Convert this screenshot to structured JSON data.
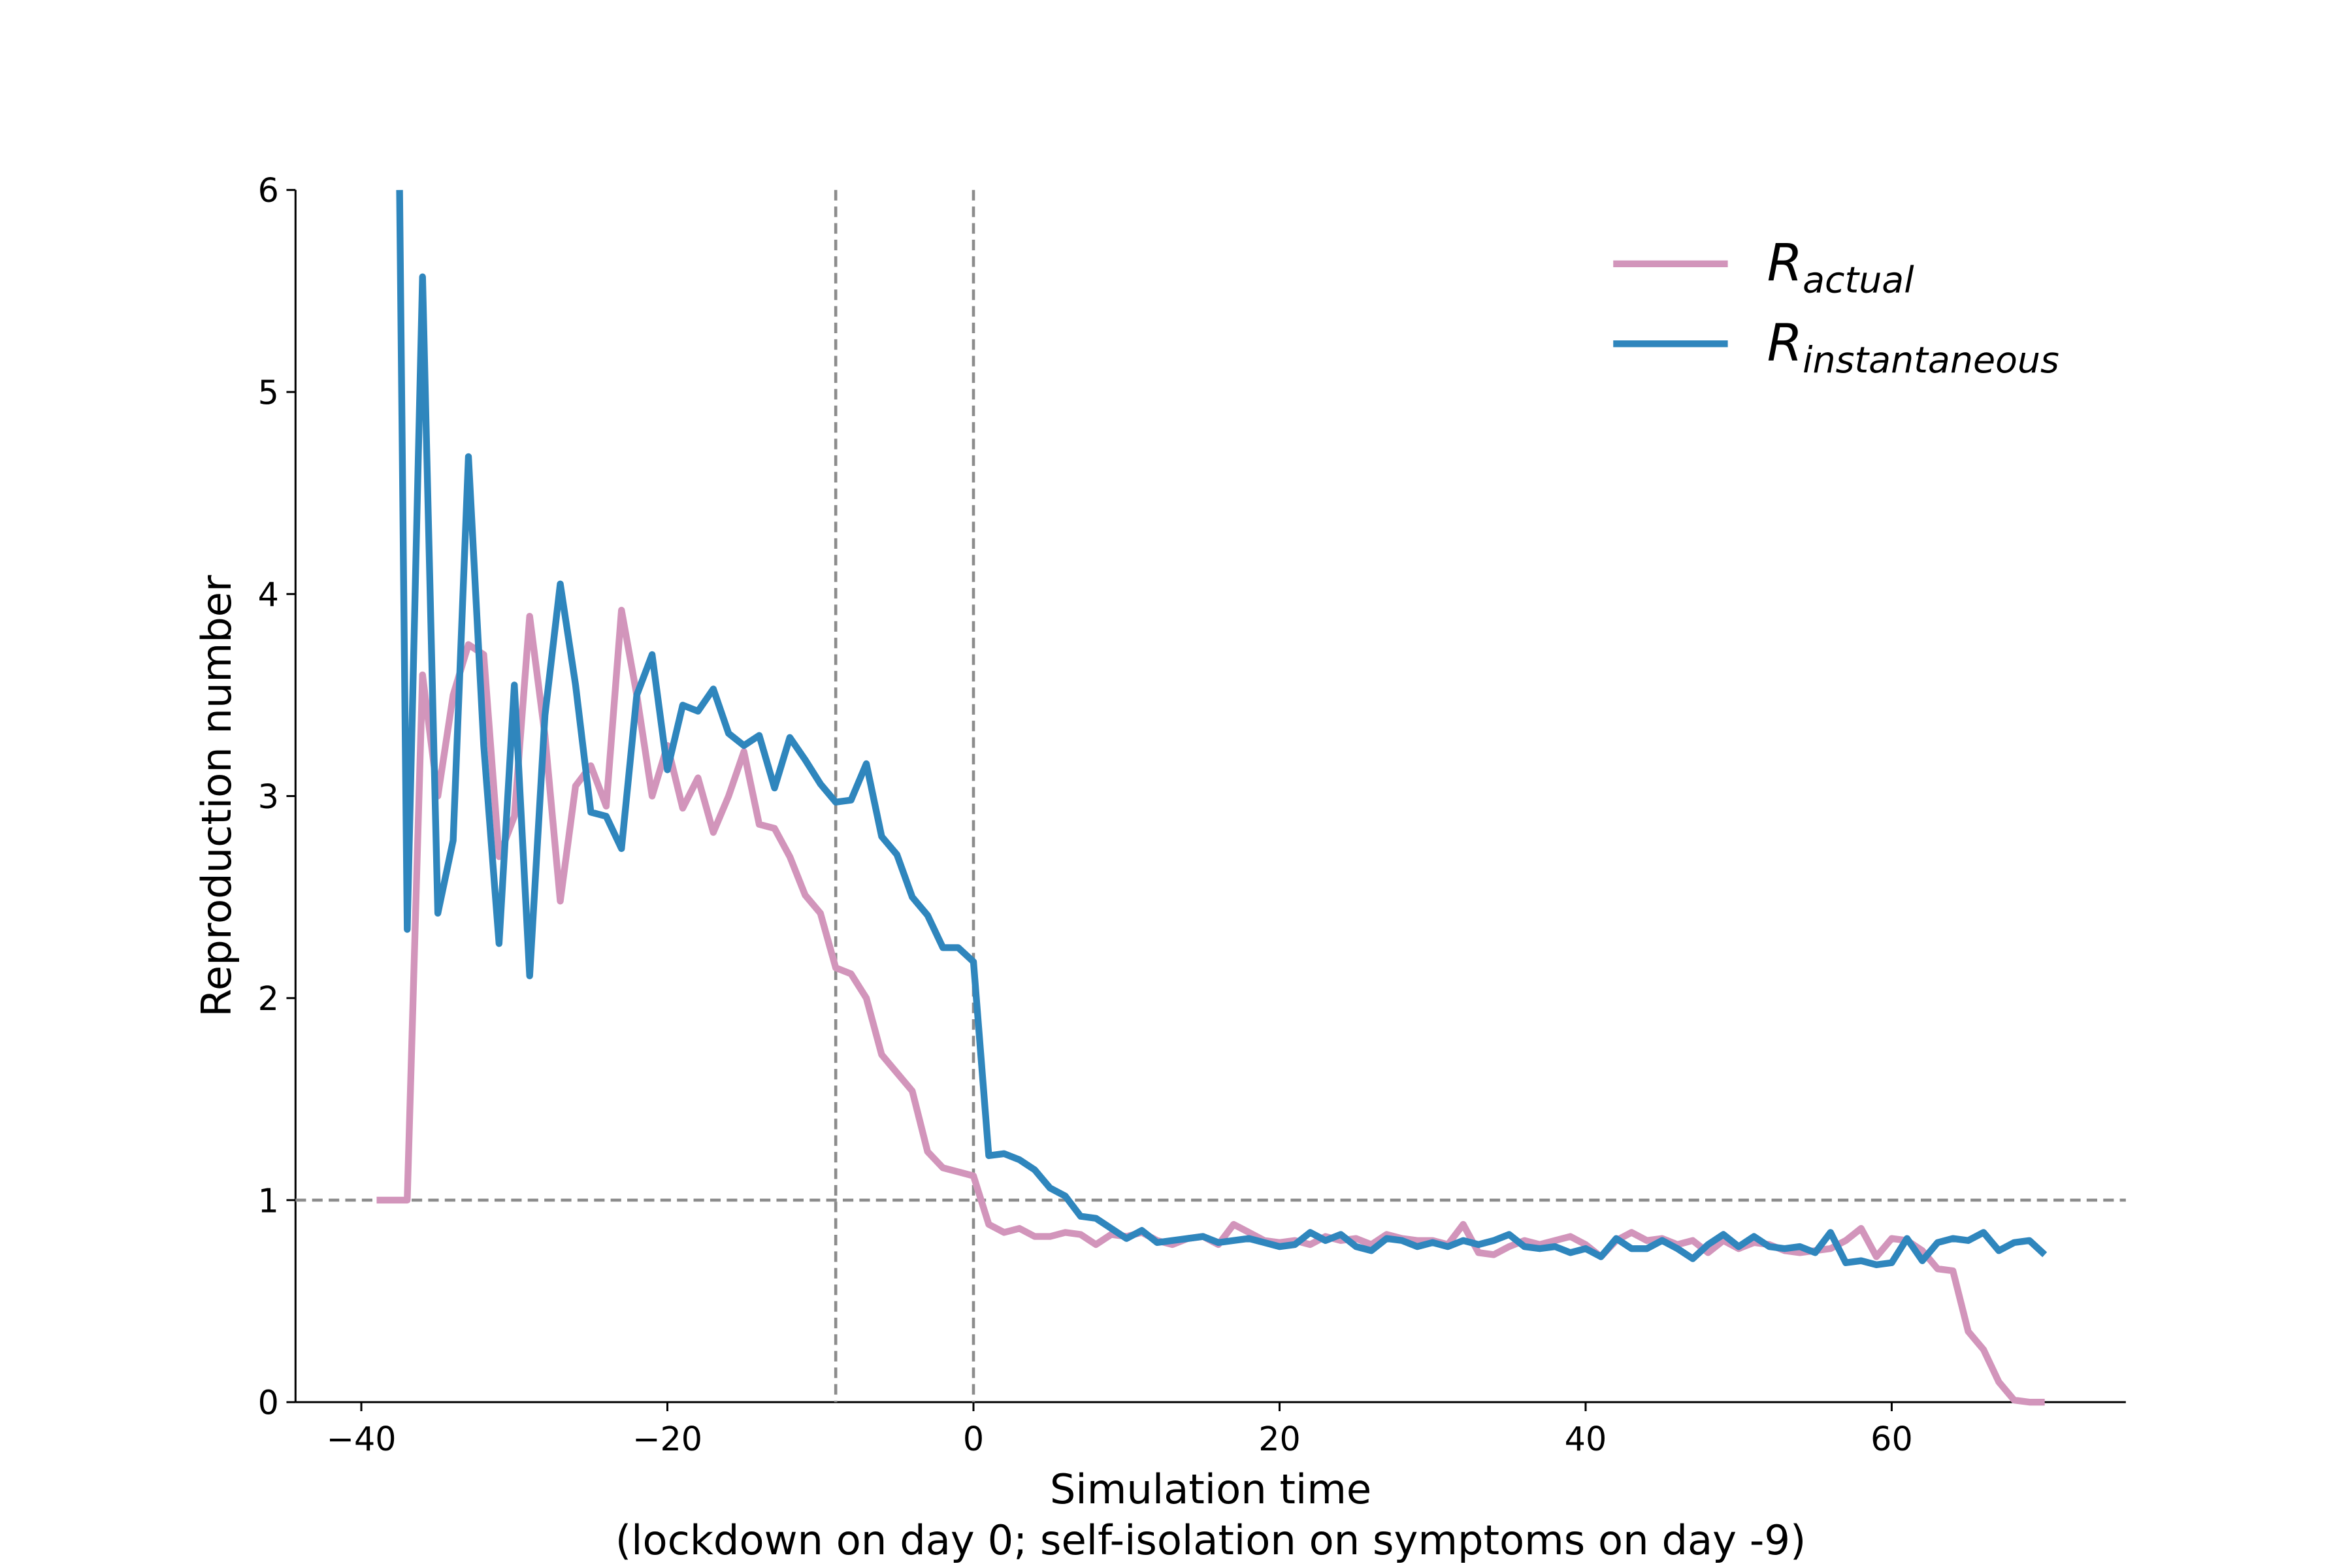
{
  "chart_data": {
    "type": "line",
    "xlabel": "Simulation time",
    "xlabel_note": "(lockdown on day 0; self-isolation on symptoms on day -9)",
    "ylabel": "Reproduction number",
    "xlim": [
      -44.3,
      75.3
    ],
    "ylim": [
      0,
      6
    ],
    "xticks": [
      {
        "value": -40,
        "label": "−40"
      },
      {
        "value": -20,
        "label": "−20"
      },
      0,
      20,
      40,
      60
    ],
    "yticks": [
      0,
      1,
      2,
      3,
      4,
      5,
      6
    ],
    "reference_lines": {
      "h": [
        1
      ],
      "v": [
        -9,
        0
      ],
      "color": "#8c8c8c"
    },
    "legend": "upper right",
    "series": [
      {
        "name": [
          "R",
          "actual"
        ],
        "color": "#d295bb",
        "x": [
          -39,
          -38,
          -37,
          -36,
          -35,
          -34,
          -33,
          -32,
          -31,
          -30,
          -29,
          -28,
          -27,
          -26,
          -25,
          -24,
          -23,
          -22,
          -21,
          -20,
          -19,
          -18,
          -17,
          -16,
          -15,
          -14,
          -13,
          -12,
          -11,
          -10,
          -9,
          -8,
          -7,
          -6,
          -5,
          -4,
          -3,
          -2,
          -1,
          0,
          1,
          2,
          3,
          4,
          5,
          6,
          7,
          8,
          9,
          10,
          11,
          12,
          13,
          14,
          15,
          16,
          17,
          18,
          19,
          20,
          21,
          22,
          23,
          24,
          25,
          26,
          27,
          28,
          29,
          30,
          31,
          32,
          33,
          34,
          35,
          36,
          37,
          38,
          39,
          40,
          41,
          42,
          43,
          44,
          45,
          46,
          47,
          48,
          49,
          50,
          51,
          52,
          53,
          54,
          55,
          56,
          57,
          58,
          59,
          60,
          61,
          62,
          63,
          64,
          65,
          66,
          67,
          68,
          69,
          70
        ],
        "values": [
          1.0,
          1.0,
          1.0,
          3.6,
          3.0,
          3.5,
          3.75,
          3.7,
          2.7,
          2.9,
          3.89,
          3.3,
          2.48,
          3.05,
          3.15,
          2.95,
          3.92,
          3.5,
          3.0,
          3.25,
          2.94,
          3.09,
          2.82,
          3.0,
          3.22,
          2.86,
          2.84,
          2.7,
          2.51,
          2.42,
          2.15,
          2.12,
          2.0,
          1.72,
          1.63,
          1.54,
          1.24,
          1.16,
          1.14,
          1.12,
          0.88,
          0.84,
          0.86,
          0.82,
          0.82,
          0.84,
          0.83,
          0.78,
          0.83,
          0.82,
          0.84,
          0.8,
          0.78,
          0.81,
          0.82,
          0.78,
          0.88,
          0.84,
          0.8,
          0.79,
          0.8,
          0.78,
          0.82,
          0.8,
          0.81,
          0.78,
          0.83,
          0.81,
          0.8,
          0.8,
          0.78,
          0.88,
          0.74,
          0.73,
          0.77,
          0.8,
          0.78,
          0.8,
          0.82,
          0.78,
          0.72,
          0.8,
          0.84,
          0.8,
          0.81,
          0.78,
          0.8,
          0.74,
          0.8,
          0.76,
          0.79,
          0.78,
          0.75,
          0.74,
          0.75,
          0.76,
          0.8,
          0.86,
          0.72,
          0.81,
          0.8,
          0.75,
          0.66,
          0.65,
          0.35,
          0.26,
          0.1,
          0.01,
          0.0,
          0.0
        ]
      },
      {
        "name": [
          "R",
          "instantaneous"
        ],
        "color": "#2f86bd",
        "x": [
          -37.5,
          -37,
          -36,
          -35,
          -34,
          -33,
          -32,
          -31,
          -30,
          -29,
          -28,
          -27,
          -26,
          -25,
          -24,
          -23,
          -22,
          -21,
          -20,
          -19,
          -18,
          -17,
          -16,
          -15,
          -14,
          -13,
          -12,
          -11,
          -10,
          -9,
          -8,
          -7,
          -6,
          -5,
          -4,
          -3,
          -2,
          -1,
          0,
          1,
          2,
          3,
          4,
          5,
          6,
          7,
          8,
          9,
          10,
          11,
          12,
          13,
          14,
          15,
          16,
          17,
          18,
          19,
          20,
          21,
          22,
          23,
          24,
          25,
          26,
          27,
          28,
          29,
          30,
          31,
          32,
          33,
          34,
          35,
          36,
          37,
          38,
          39,
          40,
          41,
          42,
          43,
          44,
          45,
          46,
          47,
          48,
          49,
          50,
          51,
          52,
          53,
          54,
          55,
          56,
          57,
          58,
          59,
          60,
          61,
          62,
          63,
          64,
          65,
          66,
          67,
          68,
          69,
          70
        ],
        "values": [
          6.0,
          2.34,
          5.57,
          2.42,
          2.78,
          4.68,
          3.25,
          2.27,
          3.55,
          2.11,
          3.4,
          4.05,
          3.55,
          2.92,
          2.9,
          2.74,
          3.5,
          3.7,
          3.13,
          3.45,
          3.42,
          3.53,
          3.31,
          3.25,
          3.3,
          3.04,
          3.29,
          3.18,
          3.06,
          2.97,
          2.98,
          3.16,
          2.8,
          2.71,
          2.5,
          2.41,
          2.25,
          2.25,
          2.18,
          1.22,
          1.23,
          1.2,
          1.15,
          1.06,
          1.02,
          0.92,
          0.91,
          0.86,
          0.81,
          0.85,
          0.79,
          0.8,
          0.81,
          0.82,
          0.79,
          0.8,
          0.81,
          0.79,
          0.77,
          0.78,
          0.84,
          0.8,
          0.83,
          0.77,
          0.75,
          0.81,
          0.8,
          0.77,
          0.79,
          0.77,
          0.8,
          0.78,
          0.8,
          0.83,
          0.77,
          0.76,
          0.77,
          0.74,
          0.76,
          0.72,
          0.81,
          0.76,
          0.76,
          0.8,
          0.76,
          0.71,
          0.78,
          0.83,
          0.77,
          0.82,
          0.77,
          0.76,
          0.77,
          0.74,
          0.84,
          0.69,
          0.7,
          0.68,
          0.69,
          0.81,
          0.7,
          0.79,
          0.81,
          0.8,
          0.84,
          0.75,
          0.79,
          0.8,
          0.73
        ]
      }
    ]
  }
}
